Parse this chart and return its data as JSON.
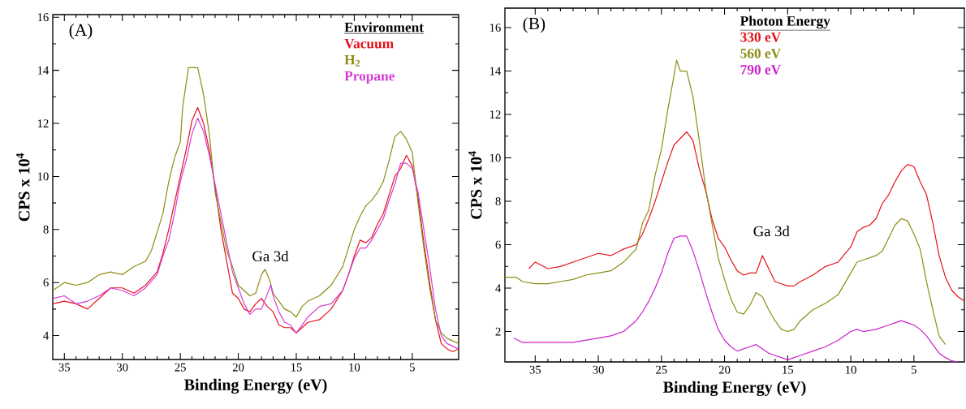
{
  "chart_data": [
    {
      "type": "line",
      "xlabel": "Binding Energy (eV)",
      "ylabel": "CPS x 10$^{4}$",
      "legend_title": "Environment",
      "legend": "top right",
      "annotations": [
        "(A)",
        "Ga 3d"
      ],
      "xlim": [
        36,
        1
      ],
      "ylim": [
        3.1,
        16.1
      ],
      "xticks": [
        35,
        30,
        25,
        20,
        15,
        10,
        5
      ],
      "yticks": [
        4,
        6,
        8,
        10,
        12,
        14,
        16
      ],
      "series": [
        {
          "name": "Vacuum",
          "color": "#e8101a",
          "x": [
            36,
            35,
            34,
            33,
            32,
            31,
            30,
            29,
            28,
            27,
            26.5,
            26,
            25.5,
            25,
            24.5,
            24,
            23.5,
            23,
            22.5,
            22,
            21.5,
            21,
            20.5,
            20,
            19.5,
            19,
            18.5,
            18,
            17.5,
            17,
            16.5,
            16,
            15.5,
            15,
            14.5,
            14,
            13,
            12,
            11,
            10.5,
            10,
            9.5,
            9,
            8.5,
            8,
            7.5,
            7,
            6.5,
            6,
            5.5,
            5,
            4.5,
            4,
            3.5,
            3,
            2.5,
            2,
            1.5,
            1
          ],
          "values": [
            5.2,
            5.3,
            5.2,
            5.0,
            5.4,
            5.8,
            5.8,
            5.6,
            5.9,
            6.4,
            7.1,
            8.0,
            9.0,
            10.0,
            11.0,
            12.1,
            12.6,
            12.0,
            11.0,
            9.6,
            8.0,
            6.8,
            5.6,
            5.4,
            5.0,
            4.9,
            5.2,
            5.4,
            5.1,
            4.9,
            4.4,
            4.3,
            4.3,
            4.1,
            4.3,
            4.5,
            4.6,
            5.0,
            5.7,
            6.3,
            7.0,
            7.6,
            7.5,
            7.7,
            8.2,
            8.6,
            9.3,
            10.0,
            10.3,
            10.8,
            10.4,
            9.2,
            7.5,
            6.0,
            4.6,
            3.7,
            3.5,
            3.4,
            3.5
          ]
        },
        {
          "name": "H$_{2}$",
          "color": "#8c8c14",
          "x": [
            36,
            35,
            34,
            33,
            32,
            31,
            30,
            29,
            28,
            27.5,
            27,
            26.5,
            26,
            25.5,
            25,
            24.8,
            24.3,
            24,
            23.5,
            23,
            22.5,
            22,
            21.5,
            21,
            20.5,
            20,
            19.5,
            19,
            18.5,
            18,
            17.7,
            17.3,
            17,
            16.5,
            16,
            15.5,
            15,
            14.5,
            14,
            13,
            12,
            11,
            10.5,
            10,
            9.5,
            9,
            8.5,
            8,
            7.5,
            7,
            6.5,
            6,
            5.5,
            5,
            4.5,
            4,
            3.5,
            3,
            2.5,
            2,
            1.5,
            1
          ],
          "values": [
            5.7,
            6.0,
            5.9,
            6.0,
            6.3,
            6.4,
            6.3,
            6.6,
            6.8,
            7.2,
            7.9,
            8.6,
            9.8,
            10.7,
            11.3,
            12.6,
            14.1,
            14.1,
            14.1,
            13.1,
            11.6,
            9.4,
            8.3,
            7.2,
            6.6,
            5.9,
            5.7,
            5.5,
            5.6,
            6.3,
            6.5,
            6.1,
            5.6,
            5.3,
            5.0,
            4.9,
            4.7,
            5.1,
            5.3,
            5.5,
            5.9,
            6.6,
            7.3,
            8.0,
            8.5,
            8.9,
            9.1,
            9.4,
            9.8,
            10.6,
            11.5,
            11.7,
            11.4,
            10.9,
            9.0,
            7.3,
            5.8,
            4.6,
            4.1,
            3.9,
            3.8,
            3.7
          ]
        },
        {
          "name": "Propane",
          "color": "#d63cd6",
          "x": [
            36,
            35,
            34,
            33,
            32,
            31,
            30,
            29,
            28,
            27,
            26.5,
            26,
            25.5,
            25,
            24.5,
            24,
            23.5,
            23,
            22.5,
            22,
            21.5,
            21,
            20.5,
            20,
            19.5,
            19,
            18.5,
            18,
            17.2,
            17,
            16.5,
            16,
            15.5,
            15,
            14.5,
            14,
            13,
            12,
            11,
            10.5,
            10,
            9.5,
            9,
            8.5,
            8,
            7.5,
            7,
            6.5,
            6,
            5.5,
            5,
            4.5,
            4,
            3.5,
            3,
            2.5,
            2,
            1.5,
            1
          ],
          "values": [
            5.4,
            5.5,
            5.2,
            5.3,
            5.5,
            5.8,
            5.7,
            5.5,
            5.8,
            6.3,
            7.0,
            7.6,
            8.6,
            9.8,
            10.6,
            11.6,
            12.2,
            11.7,
            10.8,
            9.7,
            8.6,
            7.5,
            6.4,
            5.8,
            5.2,
            4.8,
            5.0,
            5.0,
            5.9,
            5.5,
            4.9,
            4.5,
            4.4,
            4.1,
            4.4,
            4.7,
            5.1,
            5.2,
            5.7,
            6.3,
            6.9,
            7.3,
            7.3,
            7.6,
            8.0,
            8.4,
            9.1,
            9.7,
            10.5,
            10.5,
            10.3,
            9.4,
            8.0,
            6.6,
            5.0,
            4.0,
            3.7,
            3.6,
            3.5
          ]
        }
      ]
    },
    {
      "type": "line",
      "xlabel": "Binding Energy (eV)",
      "ylabel": "CPS x 10$^{4}$",
      "legend_title": "Photon Energy",
      "legend": "top",
      "annotations": [
        "(B)",
        "Ga 3d"
      ],
      "xlim": [
        37.4,
        1
      ],
      "ylim": [
        0.6,
        16.9
      ],
      "xticks": [
        35,
        30,
        25,
        20,
        15,
        10,
        5
      ],
      "yticks": [
        2,
        4,
        6,
        8,
        10,
        12,
        14,
        16
      ],
      "series": [
        {
          "name": "330 eV",
          "color": "#e8101a",
          "x": [
            35.5,
            35,
            34,
            33,
            32,
            31,
            30,
            29,
            28,
            27,
            26.5,
            26,
            25.5,
            25,
            24.5,
            24,
            23.5,
            23,
            22.5,
            22,
            21.5,
            21,
            20.5,
            20,
            19.5,
            19,
            18.5,
            18,
            17.5,
            17,
            16.5,
            16,
            15.5,
            15,
            14.5,
            14,
            13,
            12,
            11,
            10,
            9.5,
            9,
            8.5,
            8,
            7.5,
            7,
            6.5,
            6,
            5.5,
            5,
            4.5,
            4,
            3.5,
            3,
            2.5,
            2,
            1.5,
            1
          ],
          "values": [
            4.9,
            5.2,
            4.9,
            5.0,
            5.2,
            5.4,
            5.6,
            5.5,
            5.8,
            6.0,
            6.5,
            7.2,
            8.0,
            8.9,
            9.8,
            10.6,
            10.9,
            11.2,
            10.8,
            9.5,
            8.5,
            7.2,
            6.3,
            5.9,
            5.3,
            4.8,
            4.6,
            4.7,
            4.7,
            5.5,
            4.9,
            4.3,
            4.2,
            4.1,
            4.1,
            4.3,
            4.6,
            5.0,
            5.2,
            5.9,
            6.6,
            6.8,
            6.9,
            7.2,
            7.9,
            8.3,
            8.9,
            9.4,
            9.7,
            9.6,
            8.9,
            8.3,
            7.0,
            5.5,
            4.5,
            3.9,
            3.6,
            3.4
          ]
        },
        {
          "name": "560 eV",
          "color": "#8c8c14",
          "x": [
            37.4,
            36.5,
            36,
            35,
            34,
            33,
            32,
            31,
            30,
            29,
            28,
            27,
            26.5,
            26,
            25.5,
            25,
            24.5,
            24,
            23.8,
            23.5,
            23,
            22.5,
            22,
            21.5,
            21,
            20.5,
            20,
            19.5,
            19,
            18.5,
            18,
            17.5,
            17,
            16.5,
            16,
            15.5,
            15,
            14.5,
            14,
            13,
            12,
            11,
            10,
            9.5,
            9,
            8,
            7.5,
            7,
            6.5,
            6,
            5.5,
            5,
            4.5,
            4,
            3.5,
            3,
            2.5
          ],
          "values": [
            4.5,
            4.5,
            4.3,
            4.2,
            4.2,
            4.3,
            4.4,
            4.6,
            4.7,
            4.8,
            5.2,
            5.8,
            7.0,
            7.6,
            9.2,
            10.4,
            12.2,
            13.8,
            14.5,
            14.0,
            14.0,
            12.8,
            10.8,
            8.6,
            7.0,
            5.4,
            4.4,
            3.5,
            2.9,
            2.8,
            3.2,
            3.8,
            3.6,
            3.0,
            2.5,
            2.1,
            2.0,
            2.1,
            2.5,
            3.0,
            3.3,
            3.7,
            4.7,
            5.2,
            5.3,
            5.5,
            5.7,
            6.3,
            6.9,
            7.2,
            7.1,
            6.5,
            5.8,
            4.3,
            3.0,
            1.8,
            1.4
          ]
        },
        {
          "name": "790 eV",
          "color": "#cc22cc",
          "x": [
            36.7,
            36,
            35,
            34,
            33,
            32,
            31,
            30,
            29,
            28,
            27,
            26.5,
            26,
            25.5,
            25,
            24.5,
            24,
            23.5,
            23,
            22.5,
            22,
            21.5,
            21,
            20.5,
            20,
            19.5,
            19,
            18,
            17.5,
            17,
            16.5,
            16,
            15.5,
            15,
            14.5,
            14,
            13,
            12,
            11,
            10,
            9.5,
            9,
            8,
            7,
            6.5,
            6,
            5.5,
            5,
            4.5,
            4,
            3.5,
            3,
            2.5,
            2,
            1.5
          ],
          "values": [
            1.7,
            1.5,
            1.5,
            1.5,
            1.5,
            1.5,
            1.6,
            1.7,
            1.8,
            2.0,
            2.5,
            2.9,
            3.4,
            4.0,
            4.7,
            5.6,
            6.3,
            6.4,
            6.4,
            5.7,
            4.8,
            3.8,
            2.9,
            2.1,
            1.6,
            1.3,
            1.1,
            1.3,
            1.4,
            1.2,
            1.0,
            0.9,
            0.8,
            0.7,
            0.8,
            0.9,
            1.1,
            1.3,
            1.6,
            2.0,
            2.1,
            2.0,
            2.1,
            2.3,
            2.4,
            2.5,
            2.4,
            2.3,
            2.1,
            1.8,
            1.4,
            1.0,
            0.8,
            0.65,
            0.6
          ]
        }
      ]
    }
  ]
}
